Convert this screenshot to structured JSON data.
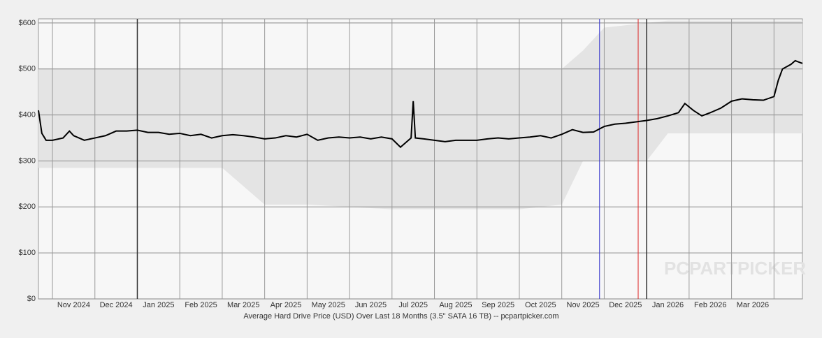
{
  "chart_data": {
    "type": "line",
    "title": "Average Hard Drive Price (USD) Over Last 18 Months (3.5\" SATA 16 TB) -- pcpartpicker.com",
    "watermark": "PCPARTPICKER",
    "xlim": [
      0.67,
      18.67
    ],
    "xticks": [
      {
        "value": 1.5,
        "label": "Nov 2024"
      },
      {
        "value": 2.5,
        "label": "Dec 2024"
      },
      {
        "value": 3.5,
        "label": "Jan 2025"
      },
      {
        "value": 4.5,
        "label": "Feb 2025"
      },
      {
        "value": 5.5,
        "label": "Mar 2025"
      },
      {
        "value": 6.5,
        "label": "Apr 2025"
      },
      {
        "value": 7.5,
        "label": "May 2025"
      },
      {
        "value": 8.5,
        "label": "Jun 2025"
      },
      {
        "value": 9.5,
        "label": "Jul 2025"
      },
      {
        "value": 10.5,
        "label": "Aug 2025"
      },
      {
        "value": 11.5,
        "label": "Sep 2025"
      },
      {
        "value": 12.5,
        "label": "Oct 2025"
      },
      {
        "value": 13.5,
        "label": "Nov 2025"
      },
      {
        "value": 14.5,
        "label": "Dec 2025"
      },
      {
        "value": 15.5,
        "label": "Jan 2026"
      },
      {
        "value": 16.5,
        "label": "Feb 2026"
      },
      {
        "value": 17.5,
        "label": "Mar 2026"
      }
    ],
    "x_gridlines": [
      1,
      2,
      3,
      4,
      5,
      6,
      7,
      8,
      9,
      10,
      11,
      12,
      13,
      14,
      15,
      16,
      17,
      18
    ],
    "year_lines": [
      3,
      15
    ],
    "marker_lines": [
      {
        "value": 13.89,
        "color": "#3333cc"
      },
      {
        "value": 14.8,
        "color": "#dd2222"
      }
    ],
    "ylim": [
      0,
      609
    ],
    "yticks": [
      {
        "value": 0,
        "label": "$0"
      },
      {
        "value": 100,
        "label": "$100"
      },
      {
        "value": 200,
        "label": "$200"
      },
      {
        "value": 300,
        "label": "$300"
      },
      {
        "value": 400,
        "label": "$400"
      },
      {
        "value": 500,
        "label": "$500"
      },
      {
        "value": 600,
        "label": "$600"
      }
    ],
    "grid": true,
    "band": {
      "color": "#e4e4e4",
      "x": [
        0.67,
        2,
        3,
        4,
        5,
        6,
        7,
        8,
        9,
        10,
        11,
        12,
        13,
        13.5,
        14,
        15,
        15.5,
        16,
        17,
        18,
        18.67
      ],
      "high": [
        500,
        500,
        500,
        500,
        500,
        500,
        500,
        500,
        500,
        500,
        500,
        500,
        500,
        540,
        590,
        600,
        605,
        605,
        605,
        605,
        605
      ],
      "low": [
        285,
        285,
        285,
        285,
        285,
        205,
        205,
        200,
        195,
        195,
        195,
        195,
        205,
        300,
        300,
        300,
        360,
        360,
        360,
        360,
        360
      ]
    },
    "series": [
      {
        "color": "#000000",
        "x": [
          0.67,
          0.75,
          0.85,
          1,
          1.25,
          1.4,
          1.5,
          1.75,
          2,
          2.25,
          2.5,
          2.75,
          3,
          3.25,
          3.5,
          3.75,
          4,
          4.25,
          4.5,
          4.75,
          5,
          5.25,
          5.5,
          5.75,
          6,
          6.25,
          6.5,
          6.75,
          7,
          7.25,
          7.5,
          7.75,
          8,
          8.25,
          8.5,
          8.75,
          9,
          9.2,
          9.45,
          9.5,
          9.55,
          9.75,
          10,
          10.25,
          10.5,
          10.75,
          11,
          11.25,
          11.5,
          11.75,
          12,
          12.25,
          12.5,
          12.75,
          13,
          13.25,
          13.5,
          13.75,
          14,
          14.25,
          14.5,
          14.75,
          15,
          15.25,
          15.5,
          15.75,
          15.9,
          16.1,
          16.3,
          16.5,
          16.75,
          17,
          17.25,
          17.5,
          17.75,
          18,
          18.1,
          18.2,
          18.4,
          18.5,
          18.67
        ],
        "values": [
          410,
          360,
          345,
          345,
          350,
          365,
          355,
          345,
          350,
          355,
          365,
          365,
          367,
          362,
          362,
          358,
          360,
          355,
          358,
          350,
          355,
          357,
          355,
          352,
          348,
          350,
          355,
          352,
          358,
          345,
          350,
          352,
          350,
          352,
          348,
          352,
          348,
          330,
          350,
          430,
          350,
          348,
          345,
          342,
          345,
          345,
          345,
          348,
          350,
          348,
          350,
          352,
          355,
          350,
          358,
          368,
          362,
          363,
          375,
          380,
          382,
          385,
          388,
          392,
          398,
          405,
          425,
          410,
          398,
          405,
          415,
          430,
          435,
          433,
          432,
          440,
          475,
          500,
          510,
          518,
          512
        ]
      }
    ]
  }
}
